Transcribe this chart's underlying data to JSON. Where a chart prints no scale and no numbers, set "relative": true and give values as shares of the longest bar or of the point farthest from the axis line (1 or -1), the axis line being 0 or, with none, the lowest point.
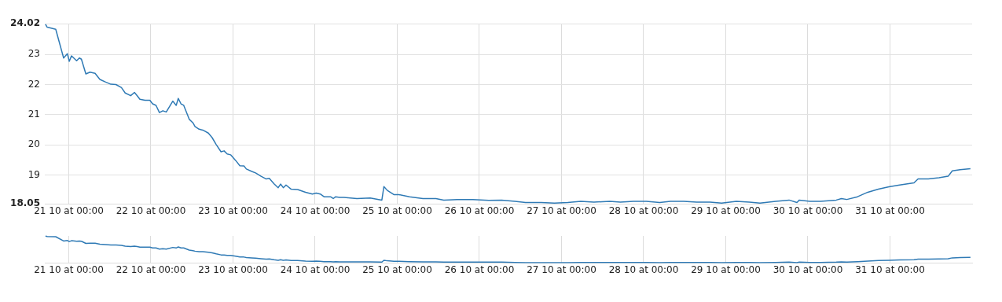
{
  "chart_data": [
    {
      "type": "line",
      "xlim": [
        "--10-20T17:00",
        "--11-01T00:00"
      ],
      "ylim": [
        18.05,
        24.02
      ],
      "xticks": [
        {
          "value": "--10-21T00:00",
          "label": "21 10 at 00:00"
        },
        {
          "value": "--10-22T00:00",
          "label": "22 10 at 00:00"
        },
        {
          "value": "--10-23T00:00",
          "label": "23 10 at 00:00"
        },
        {
          "value": "--10-24T00:00",
          "label": "24 10 at 00:00"
        },
        {
          "value": "--10-25T00:00",
          "label": "25 10 at 00:00"
        },
        {
          "value": "--10-26T00:00",
          "label": "26 10 at 00:00"
        },
        {
          "value": "--10-27T00:00",
          "label": "27 10 at 00:00"
        },
        {
          "value": "--10-28T00:00",
          "label": "28 10 at 00:00"
        },
        {
          "value": "--10-29T00:00",
          "label": "29 10 at 00:00"
        },
        {
          "value": "--10-30T00:00",
          "label": "30 10 at 00:00"
        },
        {
          "value": "--10-31T00:00",
          "label": "31 10 at 00:00"
        }
      ],
      "yticks": [
        18.05,
        19,
        20,
        21,
        22,
        23,
        24.02
      ],
      "grid": true,
      "marker": "none",
      "series": [
        {
          "color": "#2f7ab5",
          "x": [
            "--10-20T17:12",
            "--10-20T17:42",
            "--10-20T20:12",
            "--10-20T22:30",
            "--10-20T23:36",
            "--10-21T00:09",
            "--10-21T00:48",
            "--10-21T02:18",
            "--10-21T03:06",
            "--10-21T03:42",
            "--10-21T05:00",
            "--10-21T06:12",
            "--10-21T07:42",
            "--10-21T09:06",
            "--10-21T10:48",
            "--10-21T12:18",
            "--10-21T13:48",
            "--10-21T15:24",
            "--10-21T16:30",
            "--10-21T18:06",
            "--10-21T19:12",
            "--10-21T20:00",
            "--10-21T20:48",
            "--10-21T22:18",
            "--10-21T23:42",
            "--10-22T00:30",
            "--10-22T01:30",
            "--10-22T02:30",
            "--10-22T03:30",
            "--10-22T04:30",
            "--10-22T06:24",
            "--10-22T07:24",
            "--10-22T08:00",
            "--10-22T08:48",
            "--10-22T09:36",
            "--10-22T11:12",
            "--10-22T12:18",
            "--10-22T12:54",
            "--10-22T14:06",
            "--10-22T15:12",
            "--10-22T16:48",
            "--10-22T17:54",
            "--10-22T19:06",
            "--10-22T20:30",
            "--10-22T21:24",
            "--10-22T22:18",
            "--10-22T23:18",
            "--10-23T00:48",
            "--10-23T02:00",
            "--10-23T03:12",
            "--10-23T03:54",
            "--10-23T05:30",
            "--10-23T06:36",
            "--10-23T08:12",
            "--10-23T09:42",
            "--10-23T10:36",
            "--10-23T12:00",
            "--10-23T13:12",
            "--10-23T13:54",
            "--10-23T14:42",
            "--10-23T15:30",
            "--10-23T17:00",
            "--10-23T18:54",
            "--10-23T21:12",
            "--10-23T23:12",
            "--10-24T00:18",
            "--10-24T01:30",
            "--10-24T02:36",
            "--10-24T04:30",
            "--10-24T05:18",
            "--10-24T06:00",
            "--10-24T07:12",
            "--10-24T08:24",
            "--10-24T12:12",
            "--10-24T16:06",
            "--10-24T19:30",
            "--10-24T20:06",
            "--10-24T21:06",
            "--10-24T23:00",
            "--10-25T00:30",
            "--10-25T03:36",
            "--10-25T07:30",
            "--10-25T11:18",
            "--10-25T13:36",
            "--10-25T17:30",
            "--10-25T22:06",
            "--10-26T02:42",
            "--10-26T06:30",
            "--10-26T10:24",
            "--10-26T13:30",
            "--10-26T18:06",
            "--10-26T21:54",
            "--10-27T01:48",
            "--10-27T05:36",
            "--10-27T09:30",
            "--10-27T14:06",
            "--10-27T17:12",
            "--10-27T21:00",
            "--10-28T00:48",
            "--10-28T04:42",
            "--10-28T07:48",
            "--10-28T11:42",
            "--10-28T15:30",
            "--10-28T19:24",
            "--10-28T22:48",
            "--10-29T03:06",
            "--10-29T06:54",
            "--10-29T10:00",
            "--10-29T14:36",
            "--10-29T18:30",
            "--10-29T20:48",
            "--10-29T21:30",
            "--10-30T00:36",
            "--10-30T03:42",
            "--10-30T08:18",
            "--10-30T09:48",
            "--10-30T11:24",
            "--10-30T14:30",
            "--10-30T17:30",
            "--10-30T20:36",
            "--10-30T23:42",
            "--10-31T02:48",
            "--10-31T07:00",
            "--10-31T08:12",
            "--10-31T11:12",
            "--10-31T14:18",
            "--10-31T17:00",
            "--10-31T18:12",
            "--10-31T20:30",
            "--10-31T23:30"
          ],
          "values": [
            24.0,
            23.9,
            23.83,
            22.88,
            23.02,
            22.77,
            22.95,
            22.79,
            22.88,
            22.84,
            22.35,
            22.41,
            22.37,
            22.17,
            22.08,
            22.01,
            22.0,
            21.9,
            21.72,
            21.63,
            21.74,
            21.63,
            21.51,
            21.48,
            21.48,
            21.36,
            21.31,
            21.07,
            21.13,
            21.09,
            21.45,
            21.31,
            21.54,
            21.36,
            21.31,
            20.85,
            20.73,
            20.61,
            20.52,
            20.49,
            20.39,
            20.24,
            20.01,
            19.77,
            19.8,
            19.7,
            19.67,
            19.48,
            19.31,
            19.3,
            19.2,
            19.12,
            19.07,
            18.96,
            18.87,
            18.89,
            18.71,
            18.58,
            18.7,
            18.58,
            18.67,
            18.53,
            18.52,
            18.43,
            18.37,
            18.4,
            18.37,
            18.28,
            18.28,
            18.22,
            18.28,
            18.26,
            18.26,
            18.22,
            18.24,
            18.17,
            18.62,
            18.49,
            18.35,
            18.35,
            18.28,
            18.22,
            18.22,
            18.17,
            18.19,
            18.19,
            18.16,
            18.17,
            18.13,
            18.09,
            18.09,
            18.07,
            18.09,
            18.13,
            18.1,
            18.13,
            18.1,
            18.13,
            18.13,
            18.09,
            18.13,
            18.13,
            18.1,
            18.1,
            18.07,
            18.13,
            18.1,
            18.07,
            18.13,
            18.17,
            18.09,
            18.17,
            18.13,
            18.13,
            18.17,
            18.22,
            18.19,
            18.28,
            18.43,
            18.53,
            18.61,
            18.67,
            18.74,
            18.87,
            18.87,
            18.91,
            18.96,
            19.14,
            19.18,
            19.21
          ]
        }
      ]
    },
    {
      "type": "line",
      "relative": true,
      "xlim": [
        "--10-20T17:00",
        "--11-01T00:00"
      ],
      "xticks": [
        {
          "value": "--10-21T00:00",
          "label": "21 10 at 00:00"
        },
        {
          "value": "--10-22T00:00",
          "label": "22 10 at 00:00"
        },
        {
          "value": "--10-23T00:00",
          "label": "23 10 at 00:00"
        },
        {
          "value": "--10-24T00:00",
          "label": "24 10 at 00:00"
        },
        {
          "value": "--10-25T00:00",
          "label": "25 10 at 00:00"
        },
        {
          "value": "--10-26T00:00",
          "label": "26 10 at 00:00"
        },
        {
          "value": "--10-27T00:00",
          "label": "27 10 at 00:00"
        },
        {
          "value": "--10-28T00:00",
          "label": "28 10 at 00:00"
        },
        {
          "value": "--10-29T00:00",
          "label": "29 10 at 00:00"
        },
        {
          "value": "--10-30T00:00",
          "label": "30 10 at 00:00"
        },
        {
          "value": "--10-31T00:00",
          "label": "31 10 at 00:00"
        }
      ],
      "tick_labels": "x",
      "grid": "x",
      "marker": "none",
      "series": [
        {
          "color": "#2f7ab5",
          "x": [
            "--10-20T17:12",
            "--10-20T17:42",
            "--10-20T20:12",
            "--10-20T22:30",
            "--10-20T23:36",
            "--10-21T00:09",
            "--10-21T00:48",
            "--10-21T02:18",
            "--10-21T03:06",
            "--10-21T03:42",
            "--10-21T05:00",
            "--10-21T06:12",
            "--10-21T07:42",
            "--10-21T09:06",
            "--10-21T10:48",
            "--10-21T12:18",
            "--10-21T13:48",
            "--10-21T15:24",
            "--10-21T16:30",
            "--10-21T18:06",
            "--10-21T19:12",
            "--10-21T20:00",
            "--10-21T20:48",
            "--10-21T22:18",
            "--10-21T23:42",
            "--10-22T00:30",
            "--10-22T01:30",
            "--10-22T02:30",
            "--10-22T03:30",
            "--10-22T04:30",
            "--10-22T06:24",
            "--10-22T07:24",
            "--10-22T08:00",
            "--10-22T08:48",
            "--10-22T09:36",
            "--10-22T11:12",
            "--10-22T12:18",
            "--10-22T12:54",
            "--10-22T14:06",
            "--10-22T15:12",
            "--10-22T16:48",
            "--10-22T17:54",
            "--10-22T19:06",
            "--10-22T20:30",
            "--10-22T21:24",
            "--10-22T22:18",
            "--10-22T23:18",
            "--10-23T00:48",
            "--10-23T02:00",
            "--10-23T03:12",
            "--10-23T03:54",
            "--10-23T05:30",
            "--10-23T06:36",
            "--10-23T08:12",
            "--10-23T09:42",
            "--10-23T10:36",
            "--10-23T12:00",
            "--10-23T13:12",
            "--10-23T13:54",
            "--10-23T14:42",
            "--10-23T15:30",
            "--10-23T17:00",
            "--10-23T18:54",
            "--10-23T21:12",
            "--10-23T23:12",
            "--10-24T00:18",
            "--10-24T01:30",
            "--10-24T02:36",
            "--10-24T04:30",
            "--10-24T05:18",
            "--10-24T06:00",
            "--10-24T07:12",
            "--10-24T08:24",
            "--10-24T12:12",
            "--10-24T16:06",
            "--10-24T19:30",
            "--10-24T20:06",
            "--10-24T21:06",
            "--10-24T23:00",
            "--10-25T00:30",
            "--10-25T03:36",
            "--10-25T07:30",
            "--10-25T11:18",
            "--10-25T13:36",
            "--10-25T17:30",
            "--10-25T22:06",
            "--10-26T02:42",
            "--10-26T06:30",
            "--10-26T10:24",
            "--10-26T13:30",
            "--10-26T18:06",
            "--10-26T21:54",
            "--10-27T01:48",
            "--10-27T05:36",
            "--10-27T09:30",
            "--10-27T14:06",
            "--10-27T17:12",
            "--10-27T21:00",
            "--10-28T00:48",
            "--10-28T04:42",
            "--10-28T07:48",
            "--10-28T11:42",
            "--10-28T15:30",
            "--10-28T19:24",
            "--10-28T22:48",
            "--10-29T03:06",
            "--10-29T06:54",
            "--10-29T10:00",
            "--10-29T14:36",
            "--10-29T18:30",
            "--10-29T20:48",
            "--10-29T21:30",
            "--10-30T00:36",
            "--10-30T03:42",
            "--10-30T08:18",
            "--10-30T09:48",
            "--10-30T11:24",
            "--10-30T14:30",
            "--10-30T17:30",
            "--10-30T20:36",
            "--10-30T23:42",
            "--10-31T02:48",
            "--10-31T07:00",
            "--10-31T08:12",
            "--10-31T11:12",
            "--10-31T14:18",
            "--10-31T17:00",
            "--10-31T18:12",
            "--10-31T20:30",
            "--10-31T23:30"
          ],
          "values": [
            1.0,
            0.98,
            0.97,
            0.81,
            0.83,
            0.79,
            0.82,
            0.8,
            0.81,
            0.8,
            0.72,
            0.73,
            0.73,
            0.69,
            0.68,
            0.66,
            0.66,
            0.65,
            0.62,
            0.6,
            0.62,
            0.6,
            0.58,
            0.58,
            0.58,
            0.55,
            0.55,
            0.51,
            0.52,
            0.51,
            0.57,
            0.55,
            0.59,
            0.55,
            0.55,
            0.47,
            0.45,
            0.43,
            0.41,
            0.41,
            0.39,
            0.37,
            0.33,
            0.29,
            0.29,
            0.27,
            0.27,
            0.24,
            0.21,
            0.21,
            0.19,
            0.18,
            0.17,
            0.15,
            0.13,
            0.14,
            0.11,
            0.09,
            0.11,
            0.09,
            0.1,
            0.08,
            0.08,
            0.06,
            0.05,
            0.06,
            0.05,
            0.04,
            0.04,
            0.03,
            0.04,
            0.03,
            0.03,
            0.03,
            0.03,
            0.02,
            0.09,
            0.07,
            0.05,
            0.05,
            0.04,
            0.03,
            0.03,
            0.02,
            0.02,
            0.02,
            0.02,
            0.02,
            0.01,
            0,
            0,
            0,
            0,
            0.01,
            0.01,
            0.01,
            0.01,
            0.01,
            0.01,
            0,
            0.01,
            0.01,
            0.01,
            0.01,
            0,
            0.01,
            0.01,
            0,
            0.01,
            0.02,
            0,
            0.02,
            0.01,
            0.01,
            0.02,
            0.03,
            0.02,
            0.04,
            0.06,
            0.08,
            0.09,
            0.1,
            0.11,
            0.13,
            0.13,
            0.14,
            0.15,
            0.18,
            0.19,
            0.2
          ]
        }
      ]
    }
  ]
}
